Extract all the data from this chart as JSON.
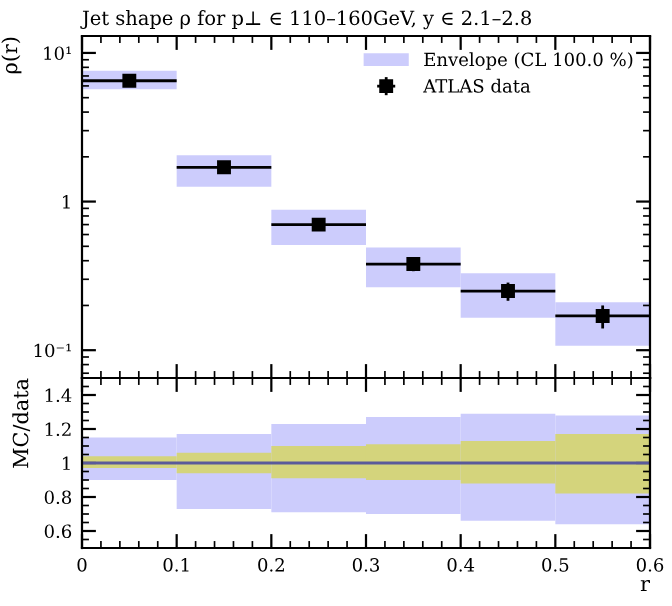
{
  "chart_data": [
    {
      "type": "bar",
      "title": "Jet shape ρ for p⊥ ∈ 110–160GeV, y ∈ 2.1–2.8",
      "ylabel": "ρ(r)",
      "log": "y",
      "x": [
        0.05,
        0.15,
        0.25,
        0.35,
        0.45,
        0.55
      ],
      "xlim": [
        0,
        0.6
      ],
      "ylim": [
        0.065,
        13
      ],
      "yticks": [
        {
          "value": 10,
          "label": "10¹"
        },
        1,
        {
          "value": 0.1,
          "label": "10⁻¹"
        }
      ],
      "tick_labels": "y",
      "legend": "top right",
      "grid": false,
      "series": [
        {
          "name": "Envelope (CL 100.0 %)",
          "color": "#ccccfc",
          "base": [
            5.7,
            1.26,
            0.51,
            0.265,
            0.165,
            0.107
          ],
          "values": [
            1.9,
            0.79,
            0.37,
            0.225,
            0.165,
            0.103
          ]
        },
        {
          "type": "scatter",
          "name": "ATLAS data",
          "color": "#000000",
          "marker": "square",
          "values": [
            6.5,
            1.7,
            0.7,
            0.38,
            0.25,
            0.17
          ],
          "errors": [
            0.2,
            0.1,
            0.05,
            0.04,
            0.035,
            0.03
          ],
          "xerrors": [
            0.05,
            0.05,
            0.05,
            0.05,
            0.05,
            0.05
          ]
        }
      ]
    },
    {
      "type": "bar",
      "xlabel": "r",
      "ylabel": "MC/data",
      "x": [
        0.05,
        0.15,
        0.25,
        0.35,
        0.45,
        0.55
      ],
      "xlim": [
        0,
        0.6
      ],
      "ylim": [
        0.5,
        1.5
      ],
      "xticks": [
        0,
        0.1,
        0.2,
        0.3,
        0.4,
        0.5,
        0.6
      ],
      "yticks": [
        0.6,
        0.8,
        1,
        1.2,
        1.4
      ],
      "grid": false,
      "legend": false,
      "ref_lines": [
        {
          "axis": "y",
          "value": 1,
          "color": "#5a5a9a"
        }
      ],
      "series": [
        {
          "color": "#ccccfc",
          "base": [
            0.9,
            0.73,
            0.71,
            0.7,
            0.66,
            0.64
          ],
          "values": [
            0.25,
            0.44,
            0.52,
            0.57,
            0.63,
            0.64
          ]
        },
        {
          "color": "#d4d47c",
          "base": [
            0.97,
            0.94,
            0.91,
            0.9,
            0.88,
            0.82
          ],
          "values": [
            0.07,
            0.12,
            0.19,
            0.21,
            0.25,
            0.35
          ]
        }
      ]
    }
  ]
}
